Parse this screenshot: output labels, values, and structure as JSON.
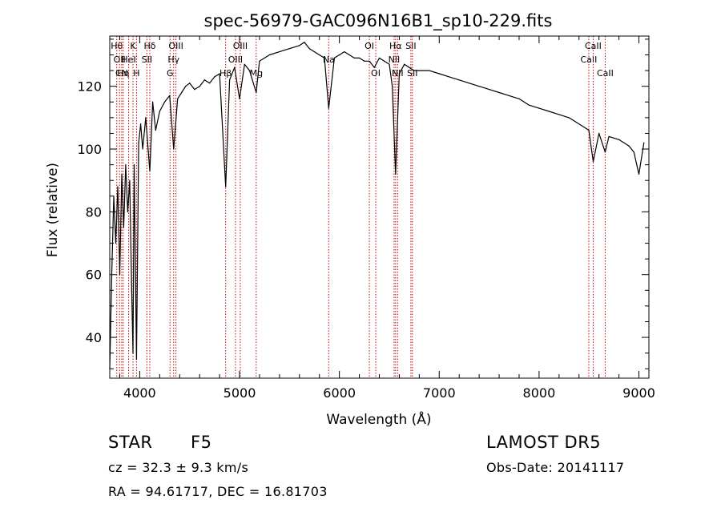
{
  "chart_data": {
    "type": "line",
    "title": "spec-56979-GAC096N16B1_sp10-229.fits",
    "xlabel": "Wavelength (Å)",
    "ylabel": "Flux (relative)",
    "xlim": [
      3700,
      9100
    ],
    "ylim": [
      27,
      136
    ],
    "x_ticks": [
      4000,
      5000,
      6000,
      7000,
      8000,
      9000
    ],
    "y_ticks": [
      40,
      60,
      80,
      100,
      120
    ],
    "grid": false,
    "legend": "none",
    "line_color": "#000000",
    "marker_color": "#cc0000",
    "series": [
      {
        "x": [
          3700,
          3720,
          3740,
          3760,
          3780,
          3800,
          3820,
          3840,
          3860,
          3880,
          3900,
          3920,
          3933,
          3945,
          3968,
          3990,
          4010,
          4030,
          4060,
          4101,
          4130,
          4160,
          4200,
          4250,
          4300,
          4340,
          4380,
          4420,
          4460,
          4500,
          4550,
          4600,
          4650,
          4700,
          4750,
          4800,
          4861,
          4900,
          4950,
          5000,
          5050,
          5100,
          5167,
          5200,
          5250,
          5300,
          5400,
          5500,
          5600,
          5650,
          5700,
          5750,
          5800,
          5850,
          5893,
          5950,
          6000,
          6050,
          6100,
          6150,
          6200,
          6250,
          6300,
          6350,
          6400,
          6450,
          6500,
          6530,
          6563,
          6600,
          6650,
          6700,
          6750,
          6800,
          6900,
          7000,
          7100,
          7200,
          7300,
          7400,
          7500,
          7600,
          7700,
          7800,
          7900,
          8000,
          8100,
          8200,
          8300,
          8400,
          8498,
          8542,
          8600,
          8662,
          8700,
          8800,
          8900,
          8950,
          9000,
          9050
        ],
        "y": [
          30,
          60,
          85,
          70,
          88,
          60,
          92,
          75,
          95,
          80,
          90,
          55,
          35,
          95,
          33,
          102,
          108,
          100,
          110,
          93,
          115,
          106,
          112,
          115,
          117,
          100,
          116,
          118,
          120,
          121,
          119,
          120,
          122,
          121,
          123,
          124,
          88,
          122,
          126,
          116,
          127,
          125,
          118,
          128,
          129,
          130,
          131,
          132,
          133,
          134,
          132,
          131,
          130,
          129,
          113,
          129,
          130,
          131,
          130,
          129,
          129,
          128,
          128,
          126,
          129,
          128,
          127,
          120,
          92,
          124,
          127,
          126,
          125,
          125,
          125,
          124,
          123,
          122,
          121,
          120,
          119,
          118,
          117,
          116,
          114,
          113,
          112,
          111,
          110,
          108,
          106,
          96,
          105,
          99,
          104,
          103,
          101,
          99,
          92,
          102
        ]
      }
    ],
    "line_markers": [
      {
        "wl": 3770,
        "label": "Hθ",
        "row": 0
      },
      {
        "wl": 3798,
        "label": "OII",
        "row": 1
      },
      {
        "wl": 3820,
        "label": "CN",
        "row": 2
      },
      {
        "wl": 3835,
        "label": "Hη",
        "row": 2
      },
      {
        "wl": 3889,
        "label": "HeI",
        "row": 1
      },
      {
        "wl": 3933,
        "label": "K",
        "row": 0
      },
      {
        "wl": 3968,
        "label": "H",
        "row": 2
      },
      {
        "wl": 4072,
        "label": "SII",
        "row": 1
      },
      {
        "wl": 4101,
        "label": "Hδ",
        "row": 0
      },
      {
        "wl": 4304,
        "label": "G",
        "row": 2
      },
      {
        "wl": 4340,
        "label": "Hγ",
        "row": 1
      },
      {
        "wl": 4363,
        "label": "OIII",
        "row": 0
      },
      {
        "wl": 4861,
        "label": "Hβ",
        "row": 2
      },
      {
        "wl": 4959,
        "label": "OIII",
        "row": 1
      },
      {
        "wl": 5007,
        "label": "OIII",
        "row": 0
      },
      {
        "wl": 5167,
        "label": "Mg",
        "row": 2
      },
      {
        "wl": 5893,
        "label": "Na",
        "row": 1
      },
      {
        "wl": 6300,
        "label": "OI",
        "row": 0
      },
      {
        "wl": 6364,
        "label": "OI",
        "row": 2
      },
      {
        "wl": 6548,
        "label": "NII",
        "row": 1
      },
      {
        "wl": 6563,
        "label": "Hα",
        "row": 0
      },
      {
        "wl": 6583,
        "label": "NII",
        "row": 2
      },
      {
        "wl": 6716,
        "label": "SII",
        "row": 0
      },
      {
        "wl": 6731,
        "label": "SII",
        "row": 2
      },
      {
        "wl": 8498,
        "label": "CaII",
        "row": 1
      },
      {
        "wl": 8542,
        "label": "CaII",
        "row": 0
      },
      {
        "wl": 8662,
        "label": "CaII",
        "row": 2
      }
    ]
  },
  "info": {
    "object_class": "STAR",
    "subclass": "F5",
    "survey": "LAMOST DR5",
    "redshift_line": "cz = 32.3 ± 9.3 km/s",
    "obs_date_line": "Obs-Date: 20141117",
    "coords_line": "RA =  94.61717, DEC =  16.81703"
  }
}
